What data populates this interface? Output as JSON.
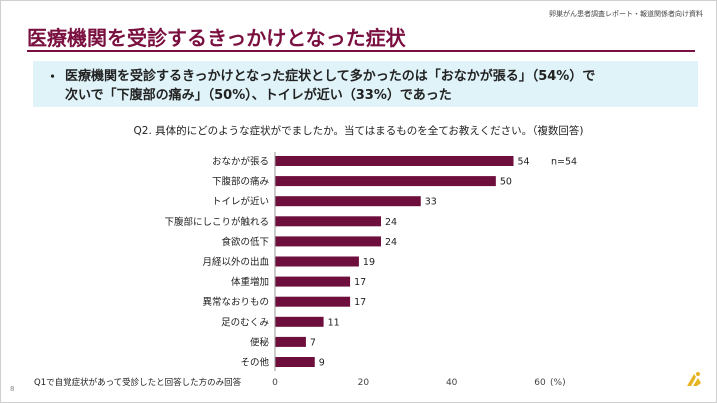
{
  "header": {
    "note": "卵巣がん患者調査レポート・報道関係者向け資料",
    "title": "医療機関を受診するきっかけとなった症状"
  },
  "summary": {
    "bullet": "・",
    "line1": "医療機関を受診するきっかけとなった症状として多かったのは「おなかが張る」（54%）で",
    "line2": "次いで「下腹部の痛み」（50%）、トイレが近い（33%）であった"
  },
  "question": "Q2. 具体的にどのような症状がでましたか。当てはまるものを全てお教えください。（複数回答)",
  "footnote": "Q1で自覚症状があって受診したと回答した方のみ回答",
  "page_number": "8",
  "colors": {
    "bar": "#6e0e3c",
    "accent": "#7a1040",
    "summary_bg": "#dff3f8",
    "logo": "#e6b422"
  },
  "logo_icon": "company-logo-icon",
  "chart_data": {
    "type": "bar",
    "orientation": "horizontal",
    "categories": [
      "おなかが張る",
      "下腹部の痛み",
      "トイレが近い",
      "下腹部にしこりが触れる",
      "食欲の低下",
      "月経以外の出血",
      "体重増加",
      "異常なおりもの",
      "足のむくみ",
      "便秘",
      "その他"
    ],
    "values": [
      54,
      50,
      33,
      24,
      24,
      19,
      17,
      17,
      11,
      7,
      9
    ],
    "xlim": [
      0,
      60
    ],
    "xticks": [
      "0",
      "20",
      "40",
      "60"
    ],
    "unit": "(%)",
    "n_label": "n=54",
    "grid": false,
    "data_labels": true
  }
}
